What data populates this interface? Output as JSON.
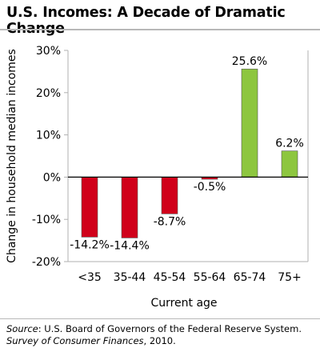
{
  "title": "U.S. Incomes: A Decade of Dramatic Change",
  "colors": {
    "negative": "#d0021b",
    "positive": "#8dc63f",
    "axis": "#808080",
    "frame": "#b0b0b0"
  },
  "chart_data": {
    "type": "bar",
    "categories": [
      "<35",
      "35-44",
      "45-54",
      "55-64",
      "65-74",
      "75+"
    ],
    "values": [
      -14.2,
      -14.4,
      -8.7,
      -0.5,
      25.6,
      6.2
    ],
    "data_labels": [
      "-14.2%",
      "-14.4%",
      "-8.7%",
      "-0.5%",
      "25.6%",
      "6.2%"
    ],
    "xlabel": "Current age",
    "ylabel": "Change in household median incomes",
    "ylim": [
      -20,
      30
    ],
    "yticks": [
      30,
      20,
      10,
      0,
      -10,
      -20
    ],
    "ytick_labels": [
      "30%",
      "20%",
      "10%",
      "0%",
      "-10%",
      "-20%"
    ],
    "grid": false,
    "legend": "none"
  },
  "source": {
    "label": "Source",
    "text_before": ": U.S. Board of Governors of the Federal Reserve System. ",
    "publication": "Survey of Consumer Finances",
    "text_after": ", 2010."
  }
}
